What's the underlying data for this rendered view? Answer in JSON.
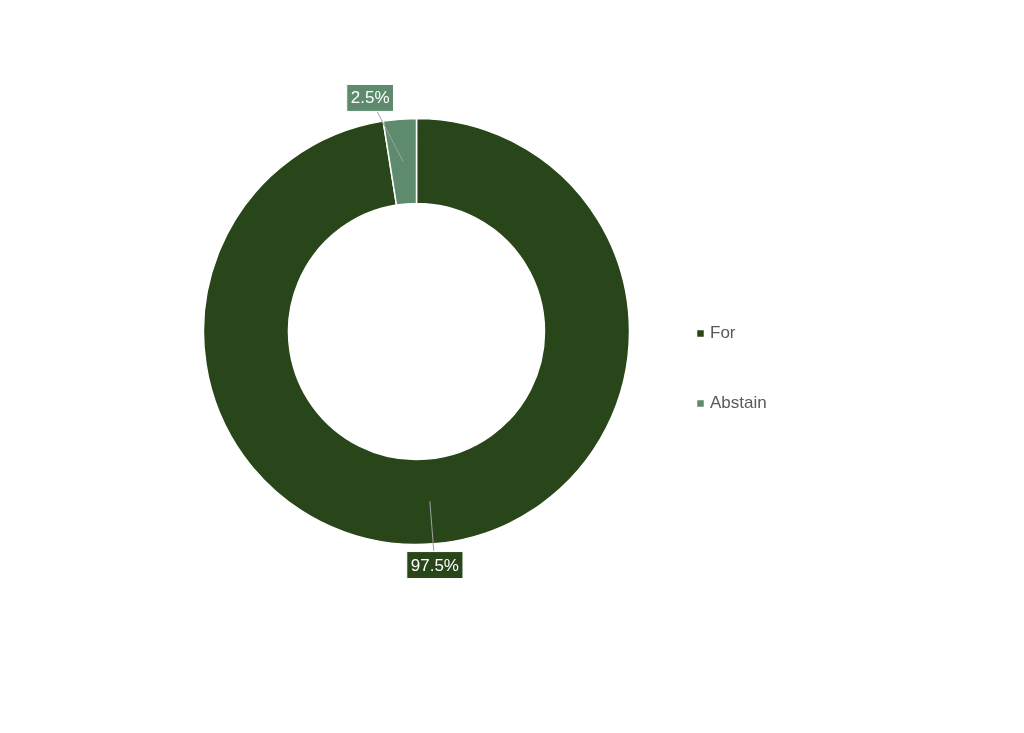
{
  "chart_data": {
    "type": "donut",
    "categories": [
      "For",
      "Abstain"
    ],
    "values": [
      97.5,
      2.5
    ],
    "colors": [
      "#28461a",
      "#5e8b6e"
    ],
    "value_labels": [
      "97.5%",
      "2.5%"
    ],
    "legend": "right"
  }
}
